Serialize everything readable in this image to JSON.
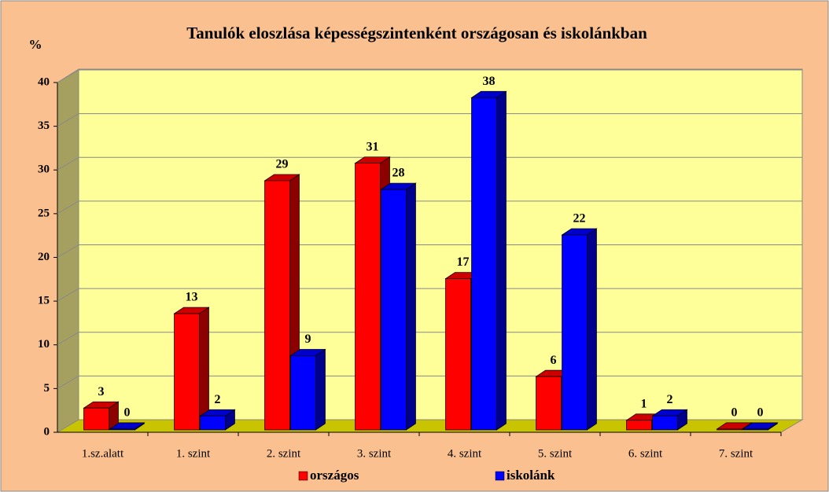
{
  "chart_data": {
    "type": "bar3d",
    "title": "Tanulók eloszlása képességszintenként országosan és iskolánkban",
    "ylabel": "%",
    "categories": [
      "1.sz.alatt",
      "1. szint",
      "2. szint",
      "3. szint",
      "4. szint",
      "5. szint",
      "6. szint",
      "7. szint"
    ],
    "series": [
      {
        "name": "országos",
        "color": "#ff0000",
        "values": [
          2.5,
          13.3,
          28.5,
          30.5,
          17.3,
          6.1,
          1.1,
          0.1
        ],
        "value_labels": [
          "3",
          "13",
          "29",
          "31",
          "17",
          "6",
          "1",
          "0"
        ]
      },
      {
        "name": "iskolánk",
        "color": "#0000ff",
        "values": [
          0.1,
          1.6,
          8.5,
          27.5,
          38,
          22.3,
          1.6,
          0.1
        ],
        "value_labels": [
          "0",
          "2",
          "9",
          "28",
          "38",
          "22",
          "2",
          "0"
        ]
      }
    ],
    "ylim": [
      0,
      40
    ],
    "yticks": [
      0,
      5,
      10,
      15,
      20,
      25,
      30,
      35,
      40
    ],
    "grid": true,
    "legend": "bottom"
  }
}
